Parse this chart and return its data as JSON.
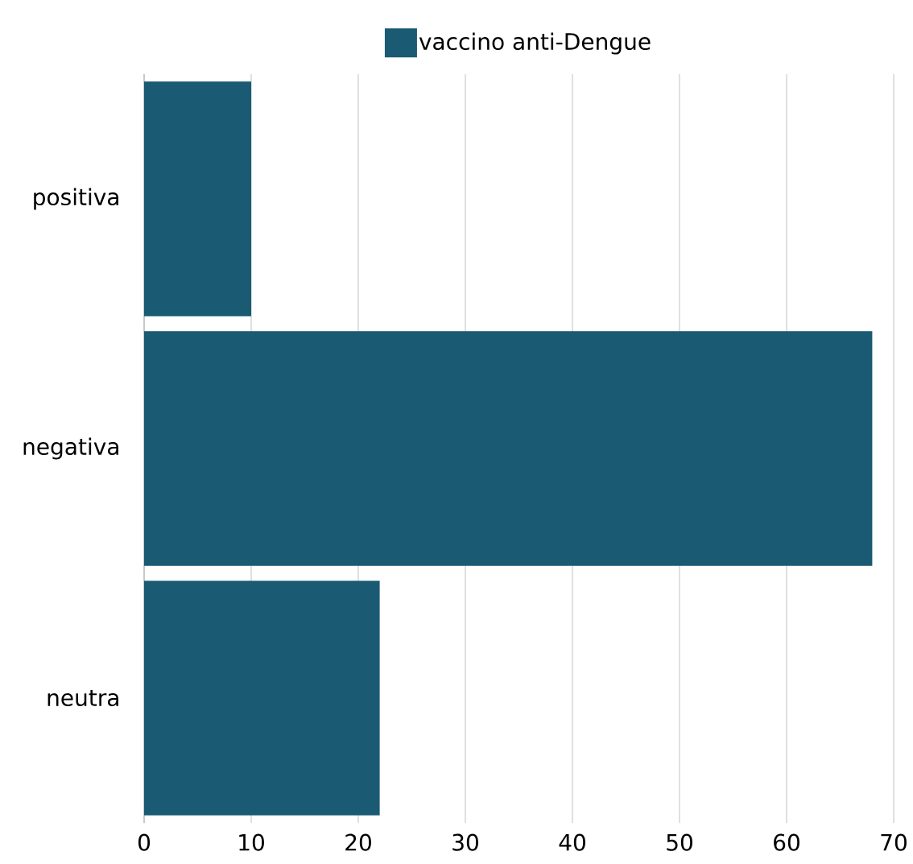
{
  "chart_data": {
    "type": "bar",
    "orientation": "horizontal",
    "categories": [
      "positiva",
      "negativa",
      "neutra"
    ],
    "series": [
      {
        "name": "vaccino anti-Dengue",
        "color": "#1a5a73",
        "values": [
          10,
          68,
          22
        ]
      }
    ],
    "xlim": [
      0,
      70
    ],
    "xticks": [
      0,
      10,
      20,
      30,
      40,
      50,
      60,
      70
    ],
    "grid": "x",
    "legend": "top"
  }
}
